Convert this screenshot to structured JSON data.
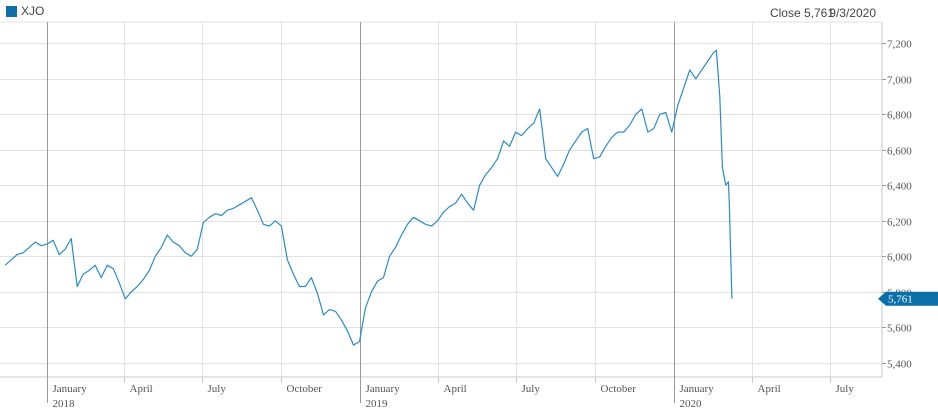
{
  "legend": {
    "label": "XJO",
    "color": "#0b70a8"
  },
  "readout": {
    "close_label": "Close 5,761",
    "date": "9/3/2020"
  },
  "chart_data": {
    "type": "line",
    "title": "",
    "xlabel": "",
    "ylabel": "",
    "series": [
      {
        "name": "XJO",
        "color": "#2b8cc4",
        "points": [
          [
            "2017-11-13",
            5950
          ],
          [
            "2017-11-20",
            5980
          ],
          [
            "2017-11-27",
            6010
          ],
          [
            "2017-12-04",
            6020
          ],
          [
            "2017-12-11",
            6050
          ],
          [
            "2017-12-18",
            6080
          ],
          [
            "2017-12-25",
            6060
          ],
          [
            "2018-01-01",
            6070
          ],
          [
            "2018-01-08",
            6090
          ],
          [
            "2018-01-15",
            6010
          ],
          [
            "2018-01-22",
            6040
          ],
          [
            "2018-01-29",
            6100
          ],
          [
            "2018-02-05",
            5830
          ],
          [
            "2018-02-12",
            5900
          ],
          [
            "2018-02-19",
            5920
          ],
          [
            "2018-02-26",
            5950
          ],
          [
            "2018-03-05",
            5880
          ],
          [
            "2018-03-12",
            5950
          ],
          [
            "2018-03-19",
            5930
          ],
          [
            "2018-03-26",
            5850
          ],
          [
            "2018-04-02",
            5760
          ],
          [
            "2018-04-09",
            5800
          ],
          [
            "2018-04-16",
            5830
          ],
          [
            "2018-04-23",
            5870
          ],
          [
            "2018-04-30",
            5920
          ],
          [
            "2018-05-07",
            6000
          ],
          [
            "2018-05-14",
            6050
          ],
          [
            "2018-05-21",
            6120
          ],
          [
            "2018-05-28",
            6080
          ],
          [
            "2018-06-04",
            6060
          ],
          [
            "2018-06-11",
            6020
          ],
          [
            "2018-06-18",
            6000
          ],
          [
            "2018-06-25",
            6040
          ],
          [
            "2018-07-02",
            6190
          ],
          [
            "2018-07-09",
            6220
          ],
          [
            "2018-07-16",
            6240
          ],
          [
            "2018-07-23",
            6230
          ],
          [
            "2018-07-30",
            6260
          ],
          [
            "2018-08-06",
            6270
          ],
          [
            "2018-08-13",
            6290
          ],
          [
            "2018-08-20",
            6310
          ],
          [
            "2018-08-27",
            6330
          ],
          [
            "2018-09-03",
            6260
          ],
          [
            "2018-09-10",
            6180
          ],
          [
            "2018-09-17",
            6170
          ],
          [
            "2018-09-24",
            6200
          ],
          [
            "2018-10-01",
            6170
          ],
          [
            "2018-10-08",
            5980
          ],
          [
            "2018-10-15",
            5900
          ],
          [
            "2018-10-22",
            5830
          ],
          [
            "2018-10-29",
            5830
          ],
          [
            "2018-11-05",
            5880
          ],
          [
            "2018-11-12",
            5790
          ],
          [
            "2018-11-19",
            5670
          ],
          [
            "2018-11-26",
            5700
          ],
          [
            "2018-12-03",
            5690
          ],
          [
            "2018-12-10",
            5640
          ],
          [
            "2018-12-17",
            5580
          ],
          [
            "2018-12-24",
            5500
          ],
          [
            "2018-12-31",
            5520
          ],
          [
            "2019-01-07",
            5710
          ],
          [
            "2019-01-14",
            5800
          ],
          [
            "2019-01-21",
            5860
          ],
          [
            "2019-01-28",
            5880
          ],
          [
            "2019-02-04",
            6000
          ],
          [
            "2019-02-11",
            6050
          ],
          [
            "2019-02-18",
            6120
          ],
          [
            "2019-02-25",
            6180
          ],
          [
            "2019-03-04",
            6220
          ],
          [
            "2019-03-11",
            6200
          ],
          [
            "2019-03-18",
            6180
          ],
          [
            "2019-03-25",
            6170
          ],
          [
            "2019-04-01",
            6200
          ],
          [
            "2019-04-08",
            6250
          ],
          [
            "2019-04-15",
            6280
          ],
          [
            "2019-04-22",
            6300
          ],
          [
            "2019-04-29",
            6350
          ],
          [
            "2019-05-06",
            6300
          ],
          [
            "2019-05-13",
            6260
          ],
          [
            "2019-05-20",
            6400
          ],
          [
            "2019-05-27",
            6460
          ],
          [
            "2019-06-03",
            6500
          ],
          [
            "2019-06-10",
            6550
          ],
          [
            "2019-06-17",
            6650
          ],
          [
            "2019-06-24",
            6620
          ],
          [
            "2019-07-01",
            6700
          ],
          [
            "2019-07-08",
            6680
          ],
          [
            "2019-07-15",
            6720
          ],
          [
            "2019-07-22",
            6750
          ],
          [
            "2019-07-29",
            6830
          ],
          [
            "2019-08-05",
            6550
          ],
          [
            "2019-08-12",
            6500
          ],
          [
            "2019-08-19",
            6450
          ],
          [
            "2019-08-26",
            6520
          ],
          [
            "2019-09-02",
            6600
          ],
          [
            "2019-09-09",
            6650
          ],
          [
            "2019-09-16",
            6700
          ],
          [
            "2019-09-23",
            6720
          ],
          [
            "2019-09-30",
            6550
          ],
          [
            "2019-10-07",
            6560
          ],
          [
            "2019-10-14",
            6620
          ],
          [
            "2019-10-21",
            6670
          ],
          [
            "2019-10-28",
            6700
          ],
          [
            "2019-11-04",
            6700
          ],
          [
            "2019-11-11",
            6740
          ],
          [
            "2019-11-18",
            6800
          ],
          [
            "2019-11-25",
            6830
          ],
          [
            "2019-12-02",
            6700
          ],
          [
            "2019-12-09",
            6720
          ],
          [
            "2019-12-16",
            6800
          ],
          [
            "2019-12-23",
            6810
          ],
          [
            "2019-12-30",
            6700
          ],
          [
            "2020-01-06",
            6850
          ],
          [
            "2020-01-13",
            6950
          ],
          [
            "2020-01-20",
            7050
          ],
          [
            "2020-01-27",
            7000
          ],
          [
            "2020-02-03",
            7050
          ],
          [
            "2020-02-10",
            7100
          ],
          [
            "2020-02-17",
            7150
          ],
          [
            "2020-02-20",
            7160
          ],
          [
            "2020-02-24",
            6900
          ],
          [
            "2020-02-27",
            6500
          ],
          [
            "2020-03-02",
            6400
          ],
          [
            "2020-03-05",
            6420
          ],
          [
            "2020-03-06",
            6300
          ],
          [
            "2020-03-09",
            5761
          ]
        ]
      }
    ],
    "ylim": [
      5320,
      7320
    ],
    "y_ticks": [
      5400,
      5600,
      5800,
      6000,
      6200,
      6400,
      6600,
      6800,
      7000,
      7200
    ],
    "y_tick_labels": [
      "5,400",
      "5,600",
      "5,800",
      "6,000",
      "6,200",
      "6,400",
      "6,600",
      "6,800",
      "7,000",
      "7,200"
    ],
    "y_axis_position": "right",
    "xlim": [
      "2017-11-07",
      "2020-08-31"
    ],
    "x_ticks": [
      {
        "date": "2018-01-01",
        "label": "January",
        "year": "2018",
        "major": true
      },
      {
        "date": "2018-04-01",
        "label": "April",
        "year": "",
        "major": false
      },
      {
        "date": "2018-07-01",
        "label": "July",
        "year": "",
        "major": false
      },
      {
        "date": "2018-10-01",
        "label": "October",
        "year": "",
        "major": false
      },
      {
        "date": "2019-01-01",
        "label": "January",
        "year": "2019",
        "major": true
      },
      {
        "date": "2019-04-01",
        "label": "April",
        "year": "",
        "major": false
      },
      {
        "date": "2019-07-01",
        "label": "July",
        "year": "",
        "major": false
      },
      {
        "date": "2019-10-01",
        "label": "October",
        "year": "",
        "major": false
      },
      {
        "date": "2020-01-01",
        "label": "January",
        "year": "2020",
        "major": true
      },
      {
        "date": "2020-04-01",
        "label": "April",
        "year": "",
        "major": false
      },
      {
        "date": "2020-07-01",
        "label": "July",
        "year": "",
        "major": false
      }
    ],
    "last_value": 5761,
    "last_value_label": "5,761",
    "grid": true,
    "legend_position": "top-left"
  }
}
